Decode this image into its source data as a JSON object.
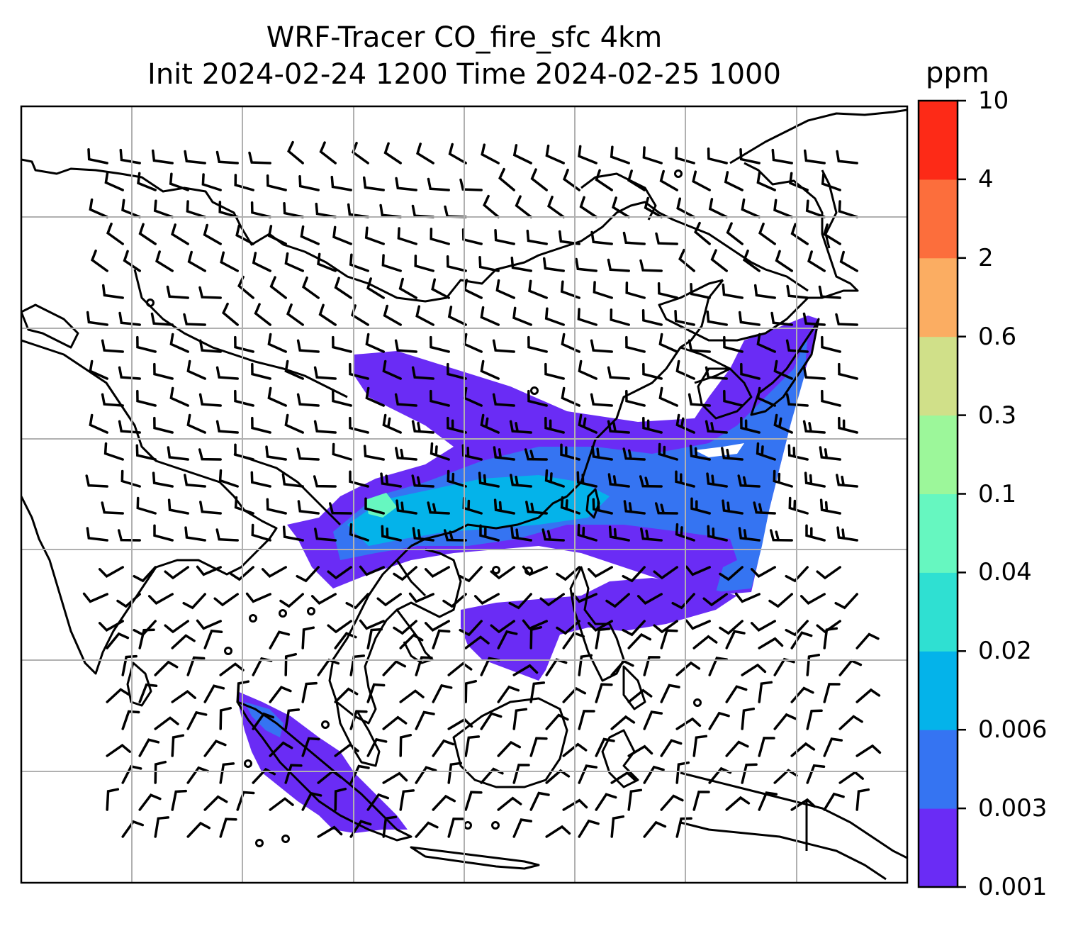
{
  "title": {
    "line1": "WRF-Tracer CO_fire_sfc 4km",
    "line2": "Init 2024-02-24 1200 Time 2024-02-25 1000"
  },
  "colorbar": {
    "unit": "ppm",
    "levels": [
      "0.001",
      "0.003",
      "0.006",
      "0.02",
      "0.04",
      "0.1",
      "0.3",
      "0.6",
      "2",
      "4",
      "10"
    ],
    "colors": [
      "#6a2cf5",
      "#3574f2",
      "#04b3ea",
      "#2fe0d2",
      "#66f7c0",
      "#9cf79a",
      "#d0e089",
      "#fbad62",
      "#fc6e3c",
      "#fd2a17"
    ]
  },
  "map": {
    "gridline_color": "#b0b0b0",
    "coastline_color": "#000000",
    "plume_colors": {
      "low": "#6a2cf5",
      "mid": "#3574f2",
      "high": "#04b3ea",
      "peak": "#66f7c0"
    }
  }
}
